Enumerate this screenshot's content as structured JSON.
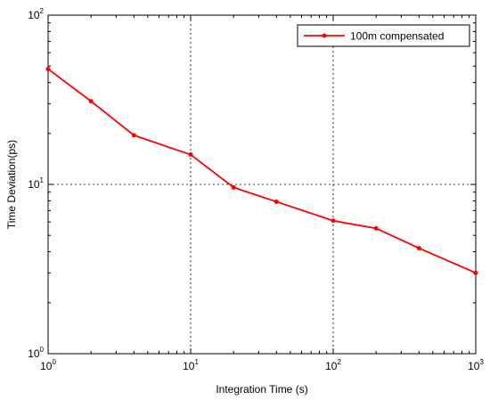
{
  "chart_data": {
    "type": "line",
    "xscale": "log",
    "yscale": "log",
    "xlabel": "Integration Time (s)",
    "ylabel": "Time Deviation(ps)",
    "xlim": [
      1,
      1000
    ],
    "ylim": [
      1,
      100
    ],
    "x_ticks": [
      {
        "base": "10",
        "exp": "0",
        "value": 1
      },
      {
        "base": "10",
        "exp": "1",
        "value": 10
      },
      {
        "base": "10",
        "exp": "2",
        "value": 100
      },
      {
        "base": "10",
        "exp": "3",
        "value": 1000
      }
    ],
    "y_ticks": [
      {
        "base": "10",
        "exp": "0",
        "value": 1
      },
      {
        "base": "10",
        "exp": "1",
        "value": 10
      },
      {
        "base": "10",
        "exp": "2",
        "value": 100
      }
    ],
    "grid": "major, dotted",
    "legend_position": "top-right",
    "series": [
      {
        "name": "100m compensated",
        "color": "#ff0000",
        "marker": "dot",
        "x": [
          1,
          2,
          4,
          10,
          20,
          40,
          100,
          200,
          400,
          1000
        ],
        "y": [
          48,
          31,
          19.5,
          15,
          9.6,
          7.9,
          6.1,
          5.5,
          4.2,
          3.0
        ]
      }
    ]
  }
}
